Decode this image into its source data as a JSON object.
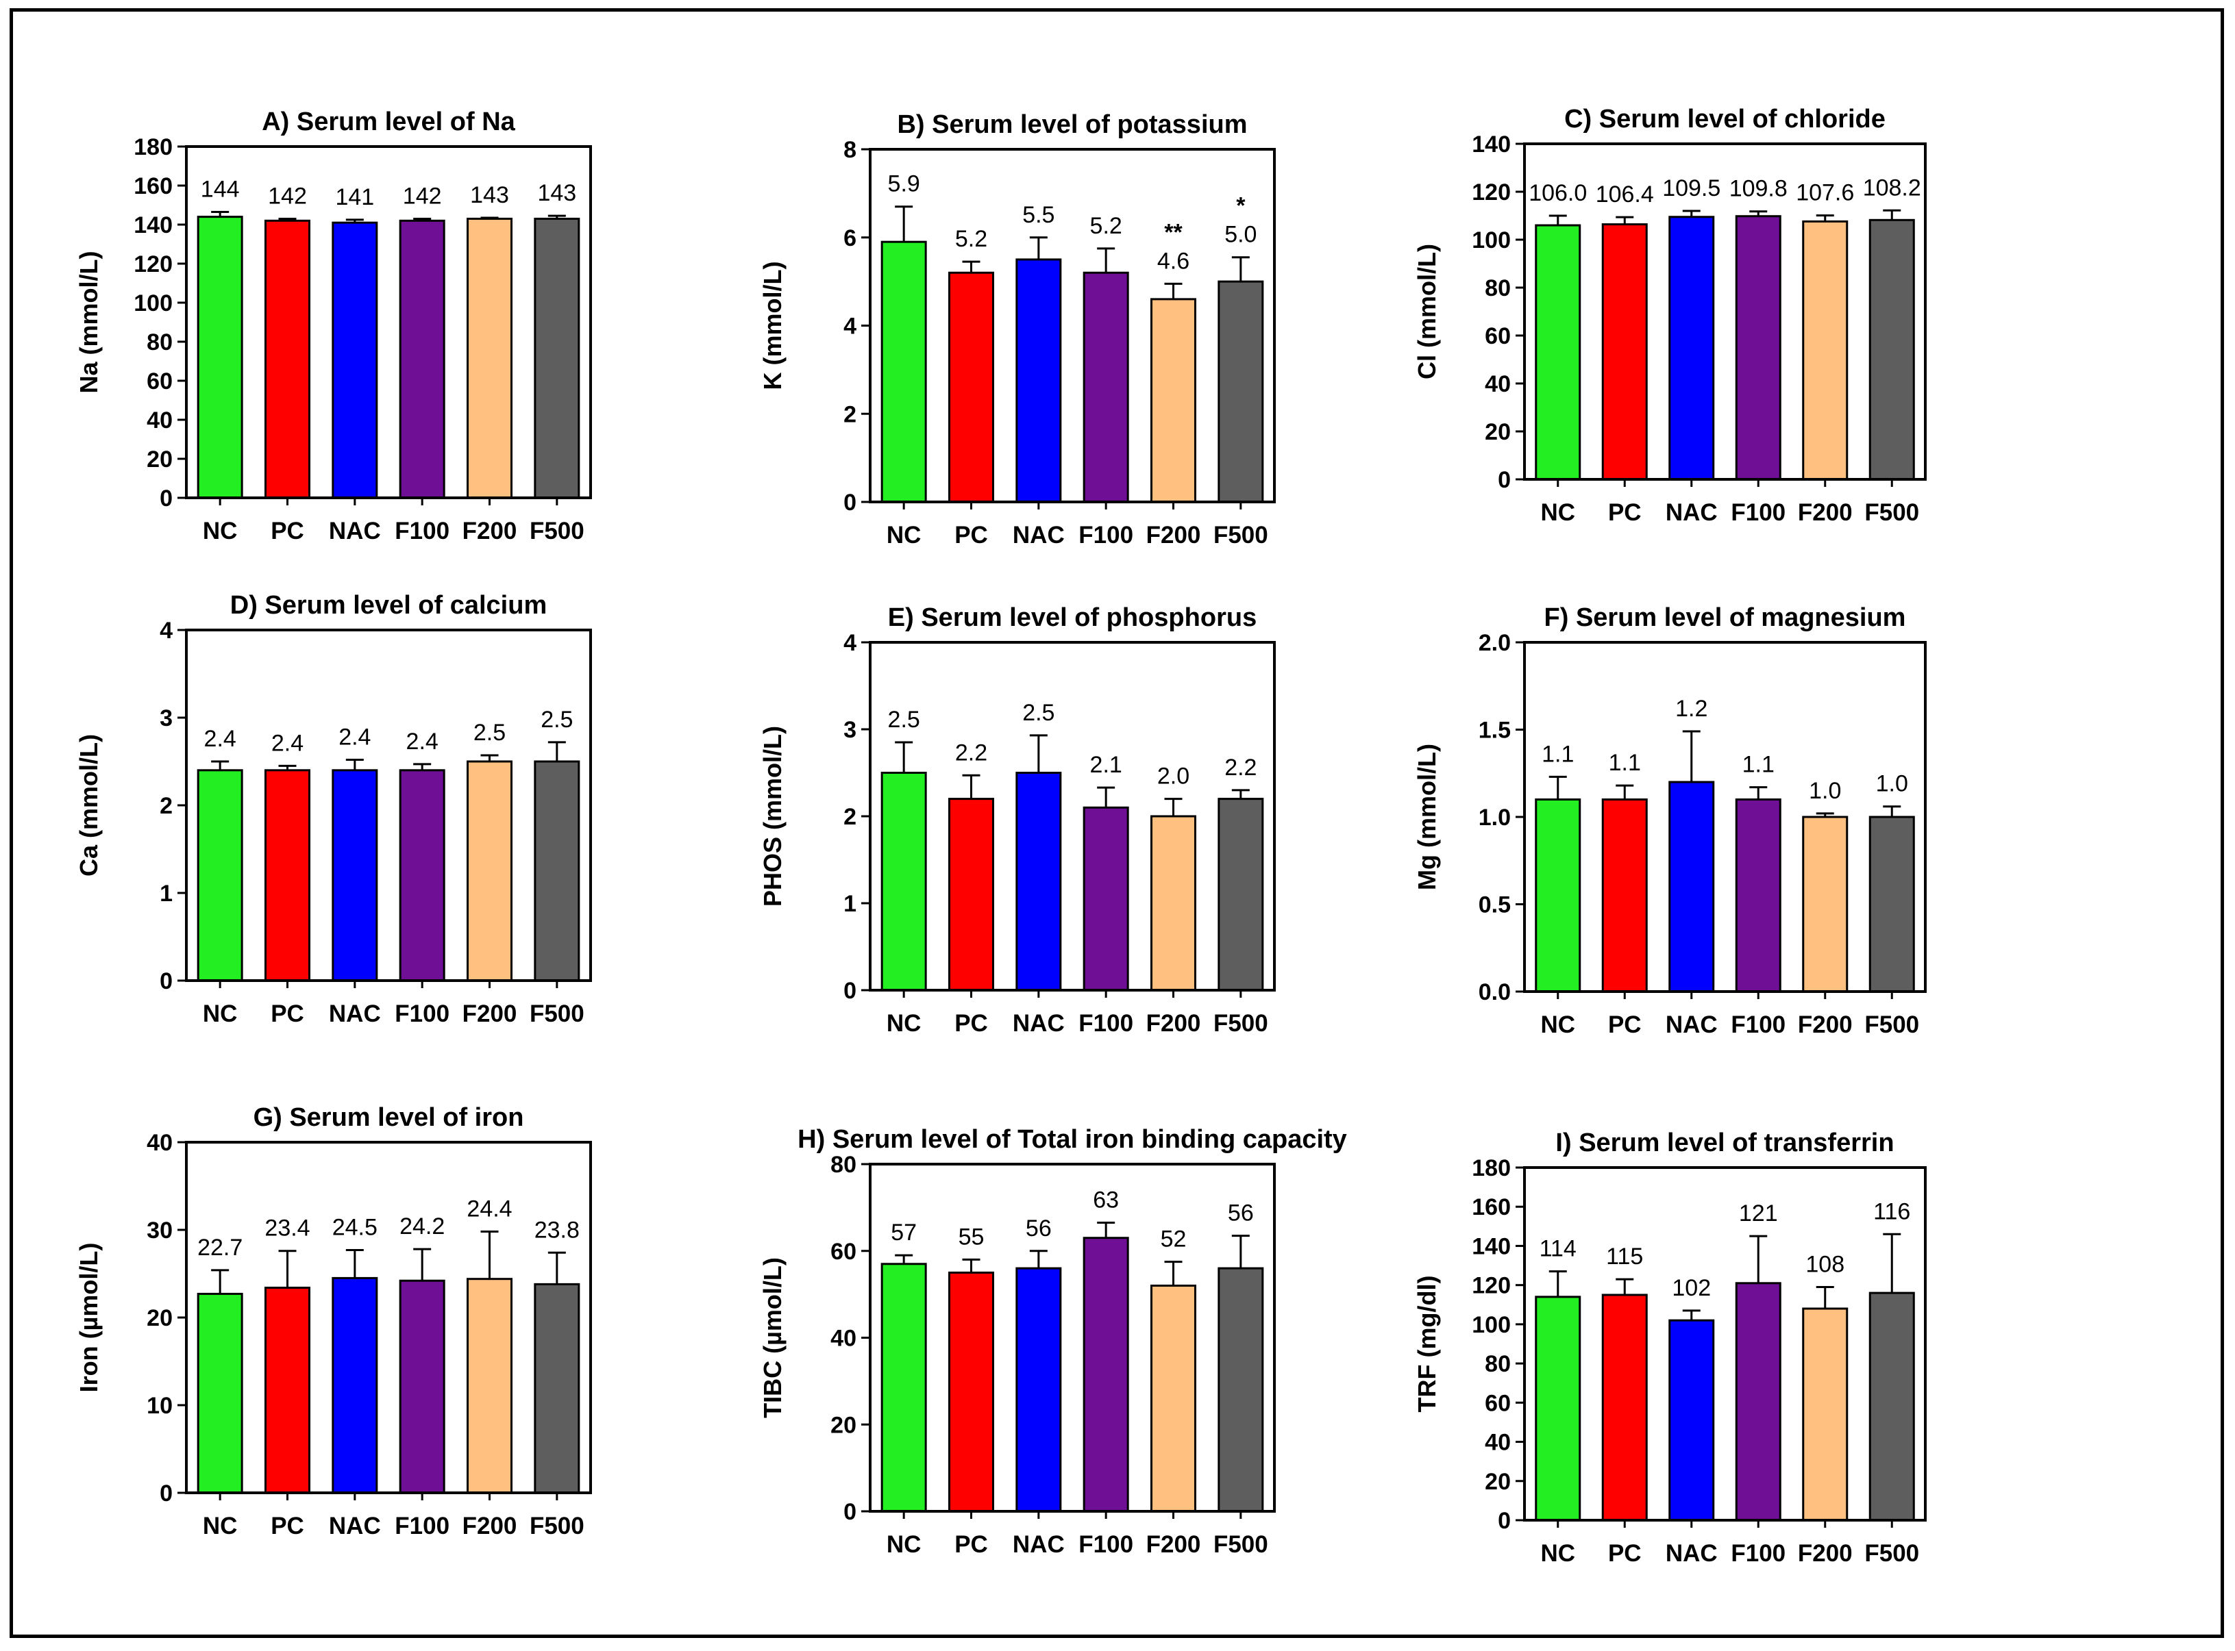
{
  "chart_data": [
    {
      "type": "bar",
      "title": "A) Serum level of Na",
      "ylabel": "Na (mmol/L)",
      "categories": [
        "NC",
        "PC",
        "NAC",
        "F100",
        "F200",
        "F500"
      ],
      "values": [
        144,
        142,
        141,
        142,
        143,
        143
      ],
      "errors": [
        2.5,
        1,
        1.5,
        1,
        0.5,
        1.5
      ],
      "labels": [
        "144",
        "142",
        "141",
        "142",
        "143",
        "143"
      ],
      "significance": [
        "",
        "",
        "",
        "",
        "",
        ""
      ],
      "ylim": [
        0,
        180
      ],
      "yticks": [
        0,
        20,
        40,
        60,
        80,
        100,
        120,
        140,
        160,
        180
      ],
      "tick_labels": [
        "0",
        "20",
        "40",
        "60",
        "80",
        "100",
        "120",
        "140",
        "160",
        "180"
      ]
    },
    {
      "type": "bar",
      "title": "B) Serum level of potassium",
      "ylabel": "K (mmol/L)",
      "categories": [
        "NC",
        "PC",
        "NAC",
        "F100",
        "F200",
        "F500"
      ],
      "values": [
        5.9,
        5.2,
        5.5,
        5.2,
        4.6,
        5.0
      ],
      "errors": [
        0.8,
        0.25,
        0.5,
        0.55,
        0.35,
        0.55
      ],
      "labels": [
        "5.9",
        "5.2",
        "5.5",
        "5.2",
        "4.6",
        "5.0"
      ],
      "significance": [
        "",
        "",
        "",
        "",
        "**",
        "*"
      ],
      "ylim": [
        0,
        8
      ],
      "yticks": [
        0,
        2,
        4,
        6,
        8
      ],
      "tick_labels": [
        "0",
        "2",
        "4",
        "6",
        "8"
      ]
    },
    {
      "type": "bar",
      "title": "C) Serum level of chloride",
      "ylabel": "Cl (mmol/L)",
      "categories": [
        "NC",
        "PC",
        "NAC",
        "F100",
        "F200",
        "F500"
      ],
      "values": [
        106.0,
        106.4,
        109.5,
        109.8,
        107.6,
        108.2
      ],
      "errors": [
        4,
        3,
        2.5,
        2,
        2.5,
        4
      ],
      "labels": [
        "106.0",
        "106.4",
        "109.5",
        "109.8",
        "107.6",
        "108.2"
      ],
      "significance": [
        "",
        "",
        "",
        "",
        "",
        ""
      ],
      "ylim": [
        0,
        140
      ],
      "yticks": [
        0,
        20,
        40,
        60,
        80,
        100,
        120,
        140
      ],
      "tick_labels": [
        "0",
        "20",
        "40",
        "60",
        "80",
        "100",
        "120",
        "140"
      ]
    },
    {
      "type": "bar",
      "title": "D) Serum level of calcium",
      "ylabel": "Ca (mmol/L)",
      "categories": [
        "NC",
        "PC",
        "NAC",
        "F100",
        "F200",
        "F500"
      ],
      "values": [
        2.4,
        2.4,
        2.4,
        2.4,
        2.5,
        2.5
      ],
      "errors": [
        0.1,
        0.05,
        0.12,
        0.07,
        0.07,
        0.22
      ],
      "labels": [
        "2.4",
        "2.4",
        "2.4",
        "2.4",
        "2.5",
        "2.5"
      ],
      "significance": [
        "",
        "",
        "",
        "",
        "",
        ""
      ],
      "ylim": [
        0,
        4
      ],
      "yticks": [
        0,
        1,
        2,
        3,
        4
      ],
      "tick_labels": [
        "0",
        "1",
        "2",
        "3",
        "4"
      ]
    },
    {
      "type": "bar",
      "title": "E) Serum level of phosphorus",
      "ylabel": "PHOS (mmol/L)",
      "categories": [
        "NC",
        "PC",
        "NAC",
        "F100",
        "F200",
        "F500"
      ],
      "values": [
        2.5,
        2.2,
        2.5,
        2.1,
        2.0,
        2.2
      ],
      "errors": [
        0.35,
        0.27,
        0.43,
        0.23,
        0.2,
        0.1
      ],
      "labels": [
        "2.5",
        "2.2",
        "2.5",
        "2.1",
        "2.0",
        "2.2"
      ],
      "significance": [
        "",
        "",
        "",
        "",
        "",
        ""
      ],
      "ylim": [
        0,
        4
      ],
      "yticks": [
        0,
        1,
        2,
        3,
        4
      ],
      "tick_labels": [
        "0",
        "1",
        "2",
        "3",
        "4"
      ]
    },
    {
      "type": "bar",
      "title": "F) Serum level of magnesium",
      "ylabel": "Mg (mmol/L)",
      "categories": [
        "NC",
        "PC",
        "NAC",
        "F100",
        "F200",
        "F500"
      ],
      "values": [
        1.1,
        1.1,
        1.2,
        1.1,
        1.0,
        1.0
      ],
      "errors": [
        0.13,
        0.08,
        0.29,
        0.07,
        0.02,
        0.06
      ],
      "labels": [
        "1.1",
        "1.1",
        "1.2",
        "1.1",
        "1.0",
        "1.0"
      ],
      "significance": [
        "",
        "",
        "",
        "",
        "",
        ""
      ],
      "ylim": [
        0,
        2
      ],
      "yticks": [
        0,
        0.5,
        1,
        1.5,
        2
      ],
      "tick_labels": [
        "0.0",
        "0.5",
        "1.0",
        "1.5",
        "2.0"
      ]
    },
    {
      "type": "bar",
      "title": "G) Serum level of iron",
      "ylabel": "Iron (µmol/L)",
      "categories": [
        "NC",
        "PC",
        "NAC",
        "F100",
        "F200",
        "F500"
      ],
      "values": [
        22.7,
        23.4,
        24.5,
        24.2,
        24.4,
        23.8
      ],
      "errors": [
        2.7,
        4.2,
        3.2,
        3.6,
        5.4,
        3.6
      ],
      "labels": [
        "22.7",
        "23.4",
        "24.5",
        "24.2",
        "24.4",
        "23.8"
      ],
      "significance": [
        "",
        "",
        "",
        "",
        "",
        ""
      ],
      "ylim": [
        0,
        40
      ],
      "yticks": [
        0,
        10,
        20,
        30,
        40
      ],
      "tick_labels": [
        "0",
        "10",
        "20",
        "30",
        "40"
      ]
    },
    {
      "type": "bar",
      "title": "H) Serum level of Total iron binding capacity",
      "ylabel": "TIBC (µmol/L)",
      "categories": [
        "NC",
        "PC",
        "NAC",
        "F100",
        "F200",
        "F500"
      ],
      "values": [
        57,
        55,
        56,
        63,
        52,
        56
      ],
      "errors": [
        2,
        3,
        4,
        3.5,
        5.5,
        7.5
      ],
      "labels": [
        "57",
        "55",
        "56",
        "63",
        "52",
        "56"
      ],
      "significance": [
        "",
        "",
        "",
        "",
        "",
        ""
      ],
      "ylim": [
        0,
        80
      ],
      "yticks": [
        0,
        20,
        40,
        60,
        80
      ],
      "tick_labels": [
        "0",
        "20",
        "40",
        "60",
        "80"
      ]
    },
    {
      "type": "bar",
      "title": "I) Serum level of transferrin",
      "ylabel": "TRF (mg/dl)",
      "categories": [
        "NC",
        "PC",
        "NAC",
        "F100",
        "F200",
        "F500"
      ],
      "values": [
        114,
        115,
        102,
        121,
        108,
        116
      ],
      "errors": [
        13,
        8,
        5,
        24,
        11,
        30
      ],
      "labels": [
        "114",
        "115",
        "102",
        "121",
        "108",
        "116"
      ],
      "significance": [
        "",
        "",
        "",
        "",
        "",
        ""
      ],
      "ylim": [
        0,
        180
      ],
      "yticks": [
        0,
        20,
        40,
        60,
        80,
        100,
        120,
        140,
        160,
        180
      ],
      "tick_labels": [
        "0",
        "20",
        "40",
        "60",
        "80",
        "100",
        "120",
        "140",
        "160",
        "180"
      ]
    }
  ],
  "colors": {
    "NC": "#22ee22",
    "PC": "#ff0000",
    "NAC": "#0000ff",
    "F100": "#6e0f96",
    "F200": "#ffc080",
    "F500": "#5e5e5e",
    "stroke": "#000000"
  }
}
